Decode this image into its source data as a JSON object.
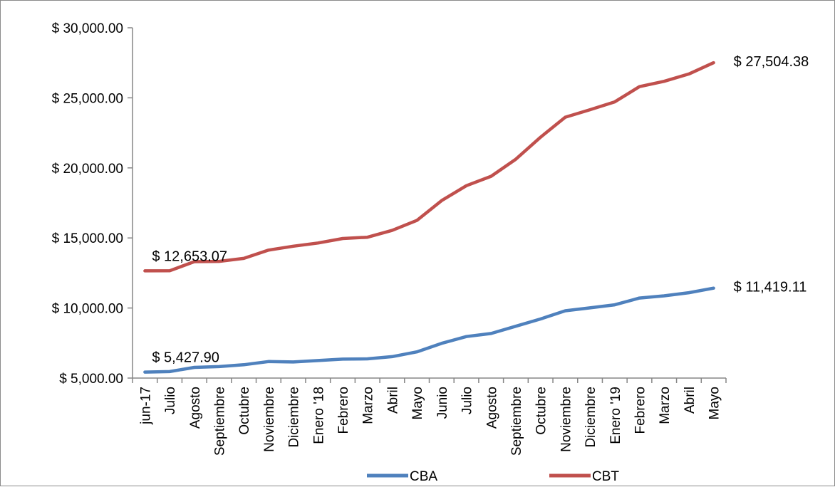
{
  "chart_data": {
    "type": "line",
    "categories": [
      "jun-17",
      "Julio",
      "Agosto",
      "Septiembre",
      "Octubre",
      "Noviembre",
      "Diciembre",
      "Enero '18",
      "Febrero",
      "Marzo",
      "Abril",
      "Mayo",
      "Junio",
      "Julio",
      "Agosto",
      "Septiembre",
      "Octubre",
      "Noviembre",
      "Diciembre",
      "Enero '19",
      "Febrero",
      "Marzo",
      "Abril",
      "Mayo"
    ],
    "ylim": [
      5000,
      30000
    ],
    "yticks": [
      5000,
      10000,
      15000,
      20000,
      25000,
      30000
    ],
    "ytick_labels": [
      "$ 5,000.00",
      "$ 10,000.00",
      "$ 15,000.00",
      "$ 20,000.00",
      "$ 25,000.00",
      "$ 30,000.00"
    ],
    "grid": false,
    "legend_position": "bottom",
    "series": [
      {
        "name": "CBA",
        "color": "#4f81bd",
        "values": [
          5427.9,
          5460,
          5760,
          5820,
          5950,
          6180,
          6150,
          6250,
          6350,
          6370,
          6530,
          6870,
          7480,
          7960,
          8180,
          8700,
          9220,
          9800,
          10010,
          10230,
          10710,
          10870,
          11090,
          11419.11
        ]
      },
      {
        "name": "CBT",
        "color": "#c0504d",
        "values": [
          12653.07,
          12660,
          13310,
          13330,
          13540,
          14130,
          14410,
          14640,
          14960,
          15050,
          15540,
          16250,
          17670,
          18730,
          19400,
          20620,
          22190,
          23620,
          24150,
          24710,
          25800,
          26180,
          26700,
          27504.38
        ]
      }
    ],
    "annotations": [
      {
        "series": "CBT",
        "index": 0,
        "text": "$ 12,653.07"
      },
      {
        "series": "CBT",
        "index": 23,
        "text": "$ 27,504.38"
      },
      {
        "series": "CBA",
        "index": 0,
        "text": "$ 5,427.90"
      },
      {
        "series": "CBA",
        "index": 23,
        "text": "$ 11,419.11"
      }
    ]
  }
}
